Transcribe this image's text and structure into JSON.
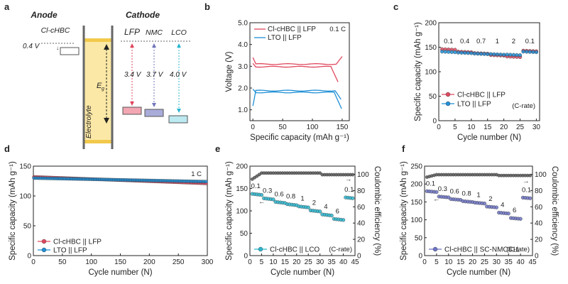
{
  "panel_letters": [
    "a",
    "b",
    "c",
    "d",
    "e",
    "f"
  ],
  "diagram": {
    "anode_title": "Anode",
    "cathode_title": "Cathode",
    "anode_material": "Cl-cHBC",
    "anode_voltage": "0.4 V",
    "electrolyte_label": "Electrolyte",
    "eg_label": "E",
    "eg_sub": "g",
    "cathodes": [
      {
        "name": "LFP",
        "voltage": "3.4 V",
        "color": "#e0475e"
      },
      {
        "name": "NMC",
        "voltage": "3.7 V",
        "color": "#7176b8"
      },
      {
        "name": "LCO",
        "voltage": "4.0 V",
        "color": "#2bb6cf"
      }
    ]
  },
  "chart_data": [
    {
      "id": "b",
      "type": "line",
      "xlabel": "Specific capacity (mAh g⁻¹)",
      "ylabel": "Voltage (V)",
      "xlim": [
        -5,
        162
      ],
      "ylim": [
        0.5,
        5.0
      ],
      "xticks": [
        0,
        50,
        100,
        150
      ],
      "yticks": [
        1.0,
        2.0,
        3.0,
        4.0,
        5.0
      ],
      "yticklabels": [
        "1.0",
        "2.0",
        "3.0",
        "4.0",
        "5.0"
      ],
      "annotation": "0.1 C",
      "series": [
        {
          "name": "Cl-cHBC || LFP",
          "color": "#e0475e",
          "charge_end": 150,
          "discharge_end": 143,
          "charge_plateau": 3.1,
          "discharge_plateau": 2.98
        },
        {
          "name": "LTO      || LFP",
          "color": "#1f8fd6",
          "charge_end": 148,
          "discharge_end": 149,
          "charge_plateau": 1.88,
          "discharge_plateau": 1.8
        }
      ]
    },
    {
      "id": "c",
      "type": "scatter",
      "xlabel": "Cycle number (N)",
      "ylabel": "Specific capacity (mAh g⁻¹)",
      "xlim": [
        0,
        31
      ],
      "ylim": [
        0,
        200
      ],
      "xticks": [
        0,
        5,
        10,
        15,
        20,
        25,
        30
      ],
      "yticks": [
        0,
        50,
        100,
        150,
        200
      ],
      "rate_labels": [
        "0.1",
        "0.4",
        "0.7",
        "1",
        "2",
        "0.1"
      ],
      "rate_note": "(C-rate)",
      "series": [
        {
          "name": "Cl-cHBC || LFP",
          "color": "#e0475e",
          "segments": [
            146,
            141,
            138,
            134,
            131,
            143
          ]
        },
        {
          "name": "LTO      || LFP",
          "color": "#1f8fd6",
          "segments": [
            141,
            139,
            137,
            136,
            135,
            141
          ]
        }
      ]
    },
    {
      "id": "d",
      "type": "scatter",
      "xlabel": "Cycle number (N)",
      "ylabel": "Specific capacity (mAh g⁻¹)",
      "xlim": [
        0,
        300
      ],
      "ylim": [
        0,
        150
      ],
      "xticks": [
        0,
        50,
        100,
        150,
        200,
        250,
        300
      ],
      "yticks": [
        0,
        50,
        100,
        150
      ],
      "annotation": "1 C",
      "series": [
        {
          "name": "Cl-cHBC || LFP",
          "color": "#e0475e",
          "start": 132,
          "end": 121
        },
        {
          "name": "LTO      || LFP",
          "color": "#1f8fd6",
          "start": 130,
          "end": 124
        }
      ]
    },
    {
      "id": "e",
      "type": "scatter",
      "xlabel": "Cycle number (N)",
      "ylabel": "Specific capacity (mAh g⁻¹)",
      "y2label": "Coulombic efficiency (%)",
      "xlim": [
        0,
        45
      ],
      "ylim": [
        0,
        200
      ],
      "y2lim": [
        0,
        110
      ],
      "xticks": [
        0,
        5,
        10,
        15,
        20,
        25,
        30,
        35,
        40,
        45
      ],
      "yticks": [
        0,
        50,
        100,
        150,
        200
      ],
      "y2ticks": [
        0,
        20,
        40,
        60,
        80,
        100
      ],
      "rate_labels": [
        "0.1",
        "0.3",
        "0.6",
        "0.8",
        "1",
        "2",
        "4",
        "6",
        "0.1"
      ],
      "rate_note": "(C-rate)",
      "capacity_segments": [
        138,
        128,
        120,
        115,
        110,
        101,
        92,
        82,
        130
      ],
      "ce_first": 94,
      "ce_steady": 101.5,
      "ce_late": 99.5,
      "series": [
        {
          "name": "Cl-cHBC || LCO",
          "color": "#2bb6cf"
        }
      ]
    },
    {
      "id": "f",
      "type": "scatter",
      "xlabel": "Cycle number (N)",
      "ylabel": "Specific capacity (mAh g⁻¹)",
      "y2label": "Coulombic efficiency (%)",
      "xlim": [
        0,
        45
      ],
      "ylim": [
        0,
        250
      ],
      "y2lim": [
        0,
        110
      ],
      "xticks": [
        0,
        5,
        10,
        15,
        20,
        25,
        30,
        35,
        40,
        45
      ],
      "yticks": [
        0,
        50,
        100,
        150,
        200,
        250
      ],
      "y2ticks": [
        0,
        20,
        40,
        60,
        80,
        100
      ],
      "rate_labels": [
        "0.1",
        "0.3",
        "0.6",
        "0.8",
        "1",
        "2",
        "4",
        "6",
        "0.1"
      ],
      "rate_note": "(C-rate)",
      "capacity_segments": [
        180,
        165,
        158,
        152,
        148,
        137,
        120,
        105,
        162
      ],
      "ce_first": 96.5,
      "ce_steady": 99.5,
      "ce_late": 98.5,
      "series": [
        {
          "name": "Cl-cHBC || SC-NMC811",
          "color": "#6d74c4"
        }
      ]
    }
  ]
}
